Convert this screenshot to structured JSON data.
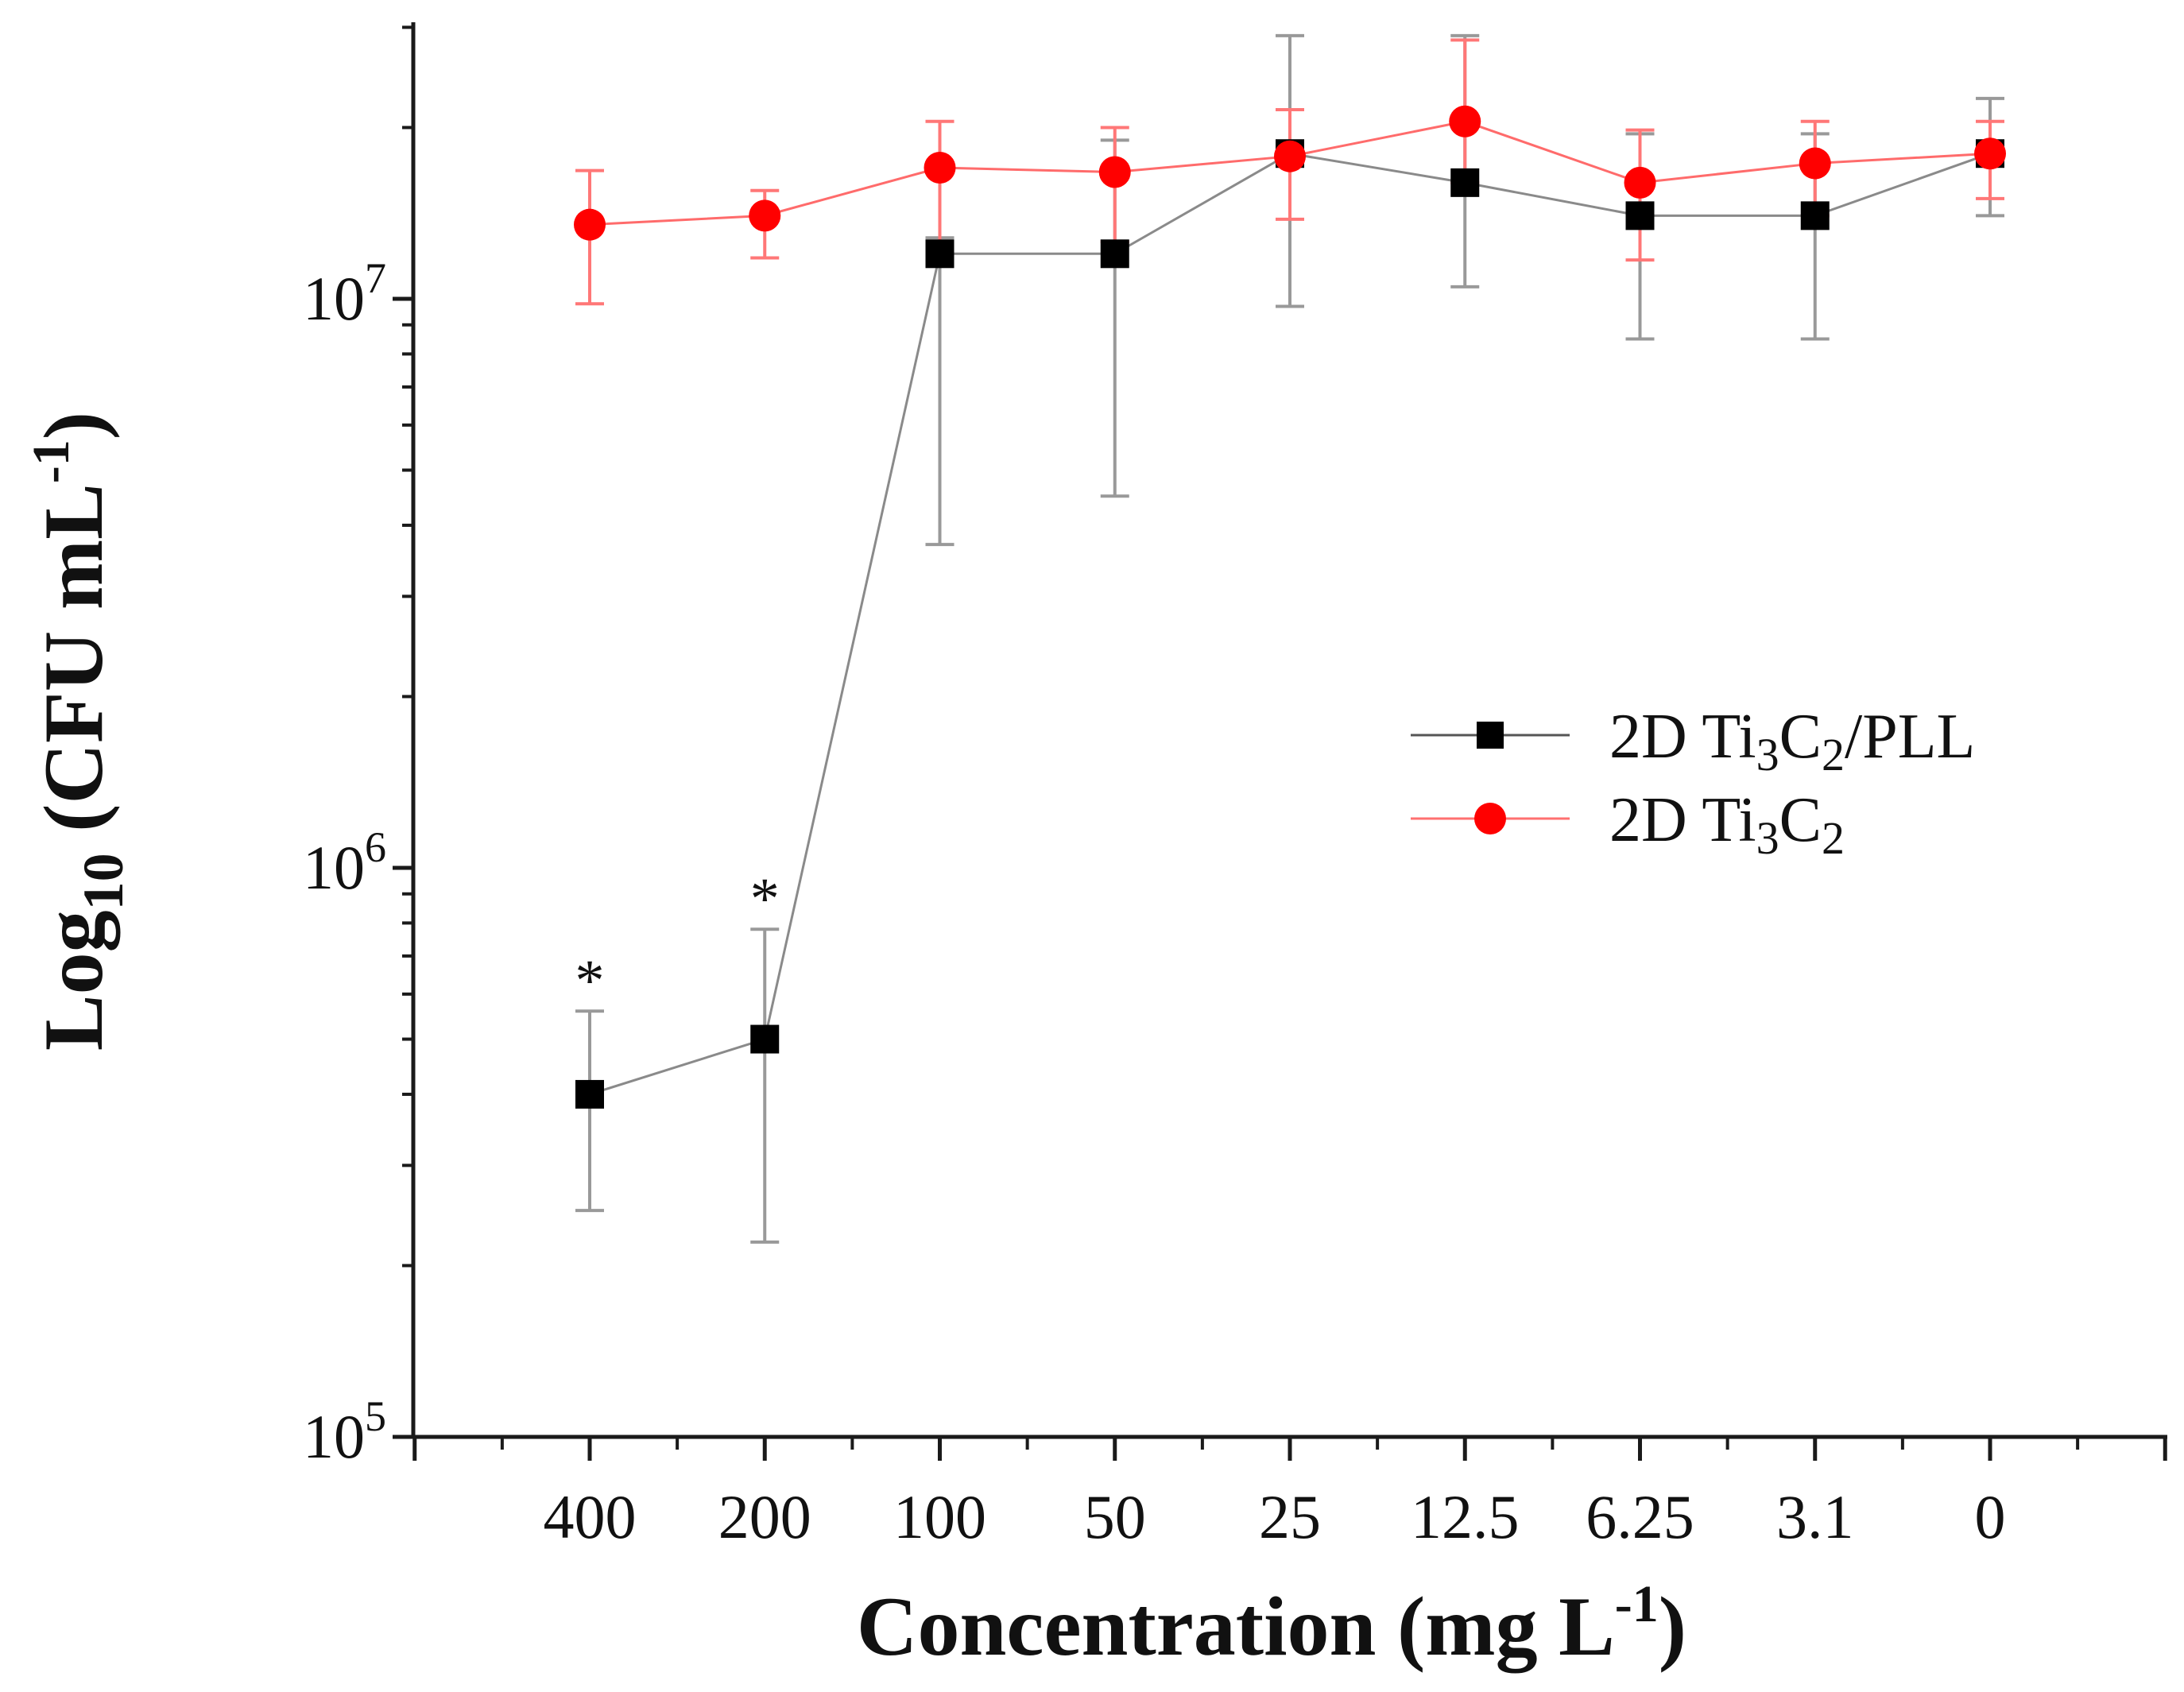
{
  "chart_data": {
    "type": "line",
    "y_scale": "log",
    "xlabel": "Concentration (mg L",
    "xlabel_sup": "-1",
    "xlabel_end": ")",
    "ylabel": "Log",
    "ylabel_sub": "10",
    "ylabel_mid": " (CFU mL",
    "ylabel_sup": "-1",
    "ylabel_end": ")",
    "categories": [
      "400",
      "200",
      "100",
      "50",
      "25",
      "12.5",
      "6.25",
      "3.1",
      "0"
    ],
    "ylim": [
      100000,
      35000000
    ],
    "y_ticks": [
      {
        "value": 100000,
        "base": "10",
        "exp": "5"
      },
      {
        "value": 1000000,
        "base": "10",
        "exp": "6"
      },
      {
        "value": 10000000,
        "base": "10",
        "exp": "7"
      }
    ],
    "legend_position": "center-right",
    "series": [
      {
        "name": "2D Ti3C2/PLL",
        "name_parts": [
          "2D Ti",
          "3",
          "C",
          "2",
          "/PLL"
        ],
        "color": "#000000",
        "err_color": "#999999",
        "marker": "square",
        "values": [
          400000,
          500000,
          12000000,
          12000000,
          18000000,
          16000000,
          14000000,
          14000000,
          18000000
        ],
        "err_low": [
          250000,
          220000,
          3700000,
          4500000,
          9700000,
          10500000,
          8500000,
          8500000,
          14000000
        ],
        "err_high": [
          560000,
          780000,
          12800000,
          19000000,
          29000000,
          29000000,
          19500000,
          19500000,
          22500000
        ]
      },
      {
        "name": "2D Ti3C2",
        "name_parts": [
          "2D Ti",
          "3",
          "C",
          "2",
          ""
        ],
        "color": "#ff0000",
        "err_color": "#ff7777",
        "marker": "circle",
        "values": [
          13500000,
          14000000,
          17000000,
          16700000,
          17800000,
          20500000,
          16000000,
          17300000,
          18000000
        ],
        "err_low": [
          9800000,
          11800000,
          12500000,
          12600000,
          13800000,
          16000000,
          11700000,
          14000000,
          15000000
        ],
        "err_high": [
          16800000,
          15500000,
          20500000,
          20000000,
          21500000,
          28500000,
          19800000,
          20500000,
          20500000
        ]
      }
    ],
    "annotations": [
      {
        "category": "400",
        "text": "*"
      },
      {
        "category": "200",
        "text": "*"
      }
    ]
  }
}
